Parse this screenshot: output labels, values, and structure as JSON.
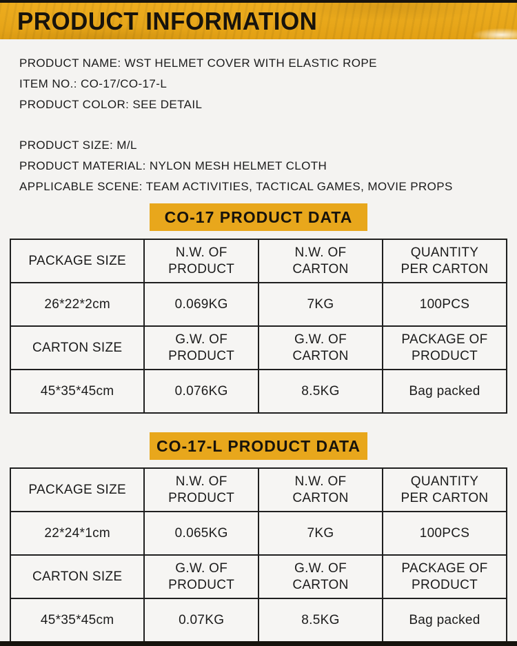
{
  "header": {
    "title": "PRODUCT INFORMATION"
  },
  "info": {
    "group1": [
      "PRODUCT NAME: WST HELMET COVER WITH ELASTIC ROPE",
      "ITEM NO.: CO-17/CO-17-L",
      "PRODUCT COLOR: SEE DETAIL"
    ],
    "group2": [
      "PRODUCT SIZE: M/L",
      "PRODUCT MATERIAL: NYLON MESH HELMET CLOTH",
      "APPLICABLE SCENE: TEAM ACTIVITIES, TACTICAL GAMES, MOVIE PROPS"
    ]
  },
  "sections": [
    {
      "banner": "CO-17 PRODUCT DATA",
      "table": {
        "rows": [
          [
            "PACKAGE SIZE",
            "N.W. OF\nPRODUCT",
            "N.W. OF\nCARTON",
            "QUANTITY\nPER CARTON"
          ],
          [
            "26*22*2cm",
            "0.069KG",
            "7KG",
            "100PCS"
          ],
          [
            "CARTON SIZE",
            "G.W. OF\nPRODUCT",
            "G.W. OF\nCARTON",
            "PACKAGE OF\nPRODUCT"
          ],
          [
            "45*35*45cm",
            "0.076KG",
            "8.5KG",
            "Bag packed"
          ]
        ]
      }
    },
    {
      "banner": "CO-17-L PRODUCT DATA",
      "table": {
        "rows": [
          [
            "PACKAGE SIZE",
            "N.W. OF\nPRODUCT",
            "N.W. OF\nCARTON",
            "QUANTITY\nPER CARTON"
          ],
          [
            "22*24*1cm",
            "0.065KG",
            "7KG",
            "100PCS"
          ],
          [
            "CARTON SIZE",
            "G.W. OF\nPRODUCT",
            "G.W. OF\nCARTON",
            "PACKAGE OF\nPRODUCT"
          ],
          [
            "45*35*45cm",
            "0.07KG",
            "8.5KG",
            "Bag packed"
          ]
        ]
      }
    }
  ],
  "colors": {
    "header_yellow": "#ECAB1D",
    "banner_yellow": "#E8A71C",
    "text_black": "#1B1B1B",
    "page_bg": "#F4F3F1",
    "strip_black": "#16130D"
  }
}
